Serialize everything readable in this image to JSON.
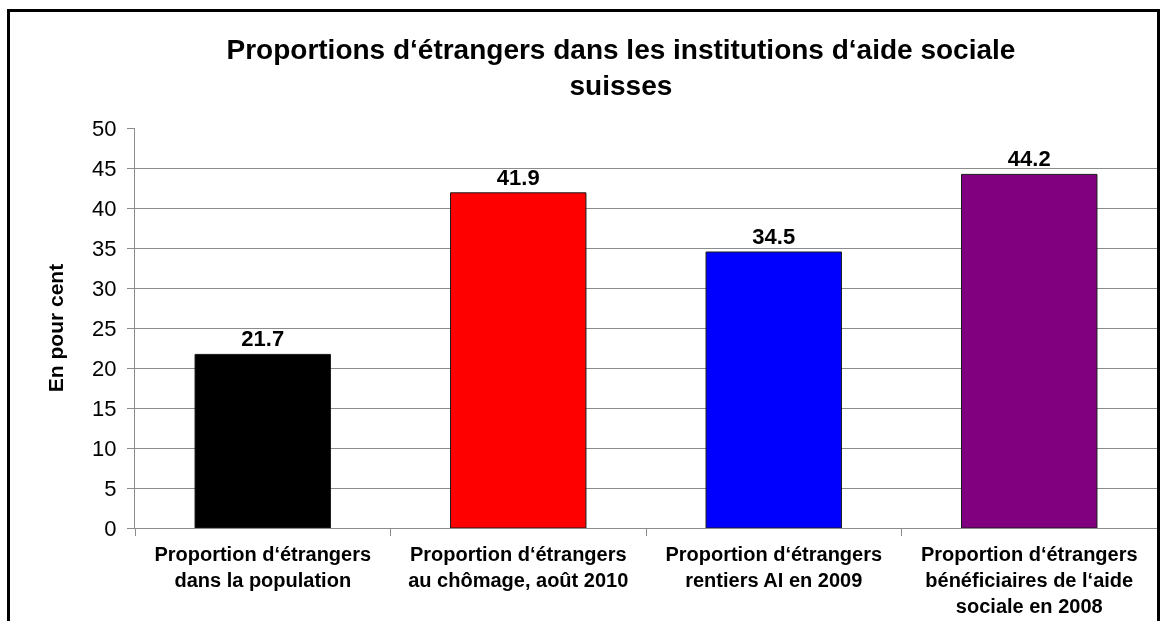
{
  "chart_data": {
    "type": "bar",
    "title": "Proportions d‘étrangers dans les institutions d‘aide sociale suisses",
    "ylabel": "En pour cent",
    "categories": [
      "Proportion d‘étrangers dans la population",
      "Proportion d‘étrangers au chômage, août 2010",
      "Proportion d‘étrangers rentiers AI en 2009",
      "Proportion d‘étrangers bénéficiaires de l‘aide sociale en 2008"
    ],
    "values": [
      21.7,
      41.9,
      34.5,
      44.2
    ],
    "colors": [
      "#000000",
      "#ff0000",
      "#0000ff",
      "#800080"
    ],
    "ylim": [
      0,
      50
    ],
    "yticks": [
      0,
      5,
      10,
      15,
      20,
      25,
      30,
      35,
      40,
      45,
      50
    ],
    "grid": "y",
    "data_labels": true
  }
}
